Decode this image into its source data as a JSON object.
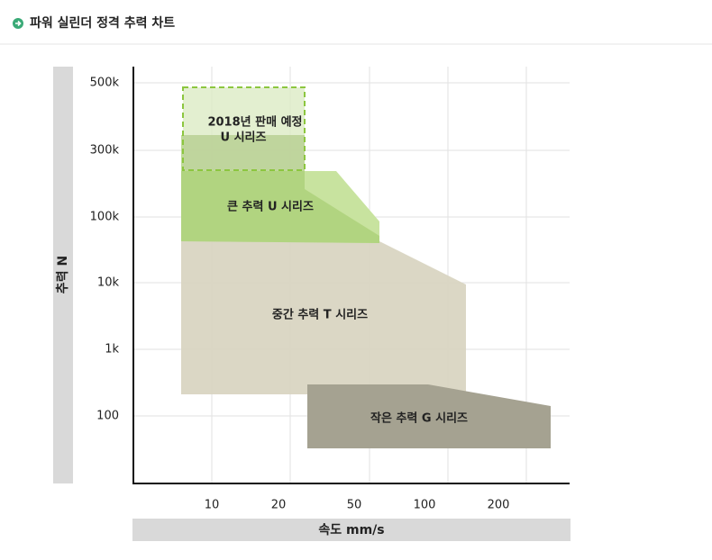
{
  "header": {
    "title": "파워 실린더 정격 추력 차트"
  },
  "chart": {
    "y_axis_title": "추력 N",
    "x_axis_title": "속도 mm/s",
    "y_tick_labels": [
      "500k",
      "300k",
      "100k",
      "10k",
      "1k",
      "100"
    ],
    "x_tick_labels": [
      "10",
      "20",
      "50",
      "100",
      "200"
    ],
    "regions": [
      {
        "label": [
          "2018년 판매 예정",
          "U 시리즈"
        ]
      },
      {
        "label": [
          "큰 추력 U 시리즈"
        ]
      },
      {
        "label": [
          "중간 추력 T 시리즈"
        ]
      },
      {
        "label": [
          "작은 추력 G 시리즈"
        ]
      }
    ]
  }
}
